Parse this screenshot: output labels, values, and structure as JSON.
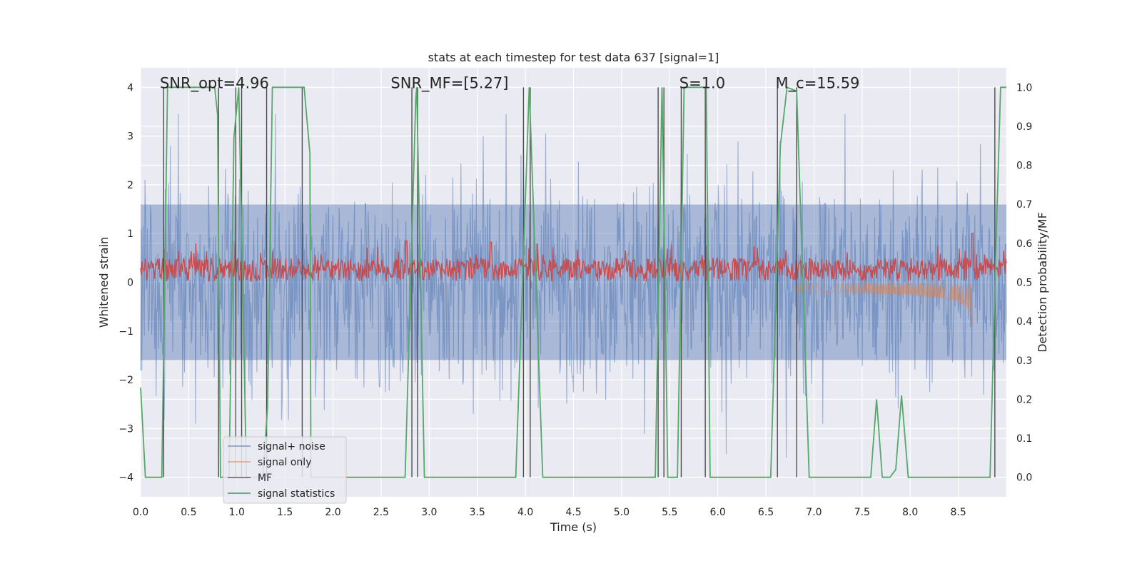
{
  "chart_data": {
    "type": "line",
    "title": "stats at each timestep for test data 637 [signal=1]",
    "xlabel": "Time (s)",
    "ylabel": "Whitened strain",
    "ylabel_right": "Detection probability/MF",
    "xlim": [
      0.0,
      9.0
    ],
    "ylim": [
      -4.4,
      4.4
    ],
    "ylim_right": [
      -0.05,
      1.05
    ],
    "xticks": [
      "0.0",
      "0.5",
      "1.0",
      "1.5",
      "2.0",
      "2.5",
      "3.0",
      "3.5",
      "4.0",
      "4.5",
      "5.0",
      "5.5",
      "6.0",
      "6.5",
      "7.0",
      "7.5",
      "8.0",
      "8.5"
    ],
    "xtick_values": [
      0.0,
      0.5,
      1.0,
      1.5,
      2.0,
      2.5,
      3.0,
      3.5,
      4.0,
      4.5,
      5.0,
      5.5,
      6.0,
      6.5,
      7.0,
      7.5,
      8.0,
      8.5
    ],
    "yticks": [
      "−4",
      "−3",
      "−2",
      "−1",
      "0",
      "1",
      "2",
      "3",
      "4"
    ],
    "ytick_values": [
      -4,
      -3,
      -2,
      -1,
      0,
      1,
      2,
      3,
      4
    ],
    "yticks_right": [
      "0.0",
      "0.1",
      "0.2",
      "0.3",
      "0.4",
      "0.5",
      "0.6",
      "0.7",
      "0.8",
      "0.9",
      "1.0"
    ],
    "ytick_values_right": [
      0.0,
      0.1,
      0.2,
      0.3,
      0.4,
      0.5,
      0.6,
      0.7,
      0.8,
      0.9,
      1.0
    ],
    "annotations": [
      {
        "text": "SNR_opt=4.96",
        "x": 0.2,
        "y": 4.0
      },
      {
        "text": "SNR_MF=[5.27]",
        "x": 2.6,
        "y": 4.0
      },
      {
        "text": "S=1.0",
        "x": 5.6,
        "y": 4.0
      },
      {
        "text": "M_c=15.59",
        "x": 6.6,
        "y": 4.0
      }
    ],
    "vlines": [
      0.24,
      0.81,
      0.99,
      1.05,
      1.31,
      1.68,
      2.82,
      2.88,
      3.98,
      4.05,
      5.38,
      5.44,
      5.62,
      5.87,
      6.62,
      6.82,
      8.88
    ],
    "vline_range": [
      -4.0,
      4.0
    ],
    "series": [
      {
        "name": "signal+ noise",
        "color": "#4c72b0",
        "style": "noise band, amplitude ~2.5, spikes to ~3.4"
      },
      {
        "name": "signal only",
        "color": "#dd8452",
        "style": "chirp 6.8–8.65 s, peak amplitude ~0.9"
      },
      {
        "name": "MF",
        "color": "#c44e52",
        "style": "positive band 0.0–0.6, spikes to ~1.0"
      },
      {
        "name": "signal statistics",
        "color": "#55a868",
        "axis": "right",
        "x": [
          0.0,
          0.05,
          0.22,
          0.28,
          0.77,
          0.8,
          0.83,
          0.92,
          0.97,
          1.02,
          1.1,
          1.27,
          1.32,
          1.37,
          1.7,
          1.76,
          1.77,
          2.75,
          2.86,
          2.87,
          2.95,
          3.9,
          4.04,
          4.18,
          5.35,
          5.42,
          5.48,
          5.58,
          5.65,
          5.88,
          5.92,
          6.55,
          6.65,
          6.72,
          6.82,
          6.95,
          7.59,
          7.65,
          7.71,
          7.79,
          7.85,
          7.91,
          7.98,
          8.83,
          8.89,
          8.94,
          9.0
        ],
        "y": [
          0.23,
          0.0,
          0.0,
          1.0,
          1.0,
          0.93,
          0.0,
          0.0,
          0.87,
          1.0,
          0.0,
          0.0,
          0.18,
          1.0,
          1.0,
          0.83,
          0.0,
          0.0,
          0.97,
          1.0,
          0.0,
          0.0,
          1.0,
          0.0,
          0.0,
          1.0,
          0.0,
          0.0,
          1.0,
          1.0,
          0.0,
          0.0,
          0.85,
          1.0,
          0.99,
          0.0,
          0.0,
          0.2,
          0.0,
          0.0,
          0.02,
          0.21,
          0.0,
          0.0,
          0.58,
          1.0,
          1.0
        ]
      }
    ],
    "legend": {
      "position": "lower-left",
      "entries": [
        "signal+ noise",
        "signal only",
        "MF",
        "signal statistics"
      ]
    },
    "grid": true,
    "colors": {
      "background": "#eaeaf2",
      "grid": "#ffffff",
      "vline": "#4d4d4d"
    }
  }
}
